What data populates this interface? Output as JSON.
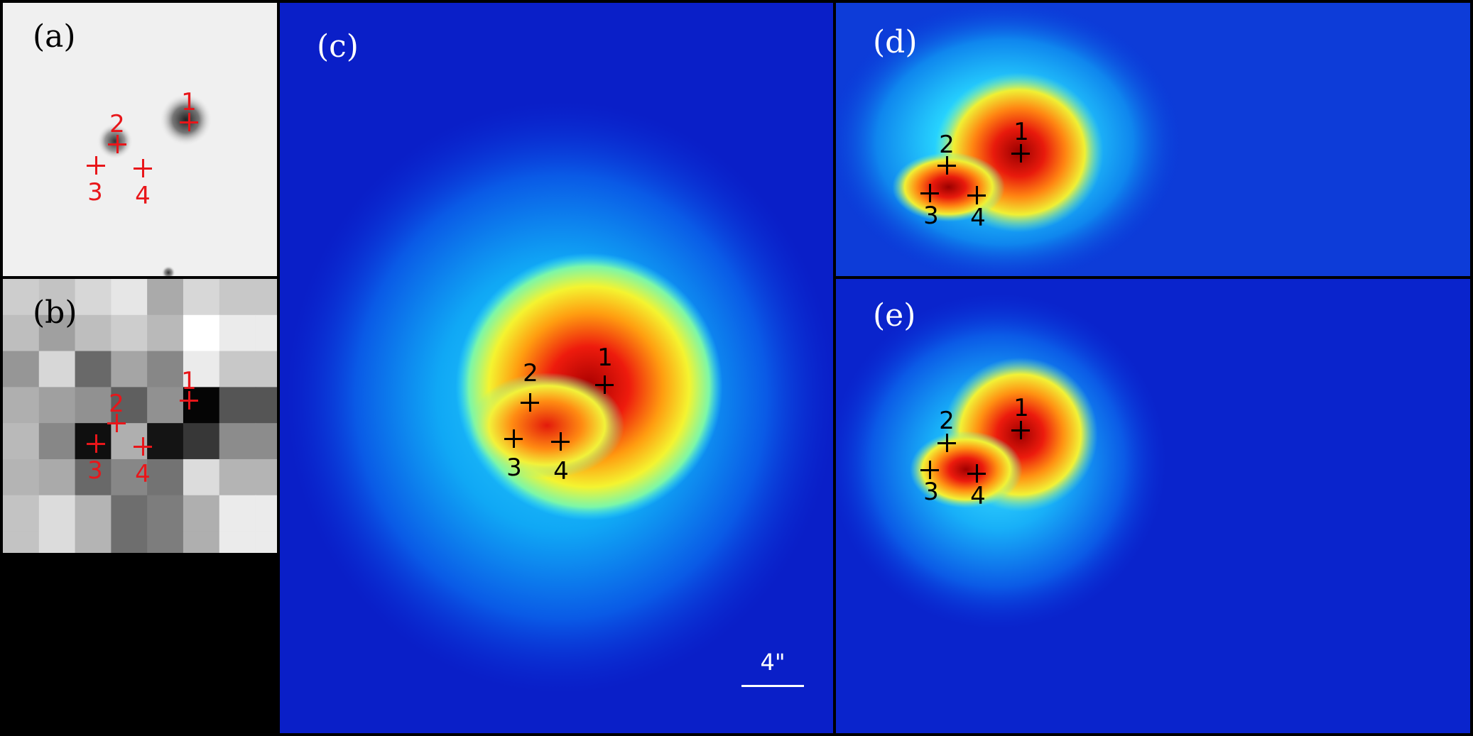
{
  "panels": [
    {
      "id": "a",
      "label": "(a)",
      "style": "optical-grayscale",
      "marker_color": "#e8161a"
    },
    {
      "id": "b",
      "label": "(b)",
      "style": "pixelated-grayscale",
      "marker_color": "#e8161a"
    },
    {
      "id": "c",
      "label": "(c)",
      "style": "jet-colormap",
      "marker_color": "#000000"
    },
    {
      "id": "d",
      "label": "(d)",
      "style": "jet-colormap",
      "marker_color": "#000000"
    },
    {
      "id": "e",
      "label": "(e)",
      "style": "jet-colormap",
      "marker_color": "#000000"
    }
  ],
  "source_labels": [
    "1",
    "2",
    "3",
    "4"
  ],
  "scale_bar": {
    "label": "4\""
  },
  "colors": {
    "panel_border": "#000000",
    "label_light_bg": "#000000",
    "label_dark_bg": "#ffffff",
    "red_marker": "#e8161a"
  }
}
